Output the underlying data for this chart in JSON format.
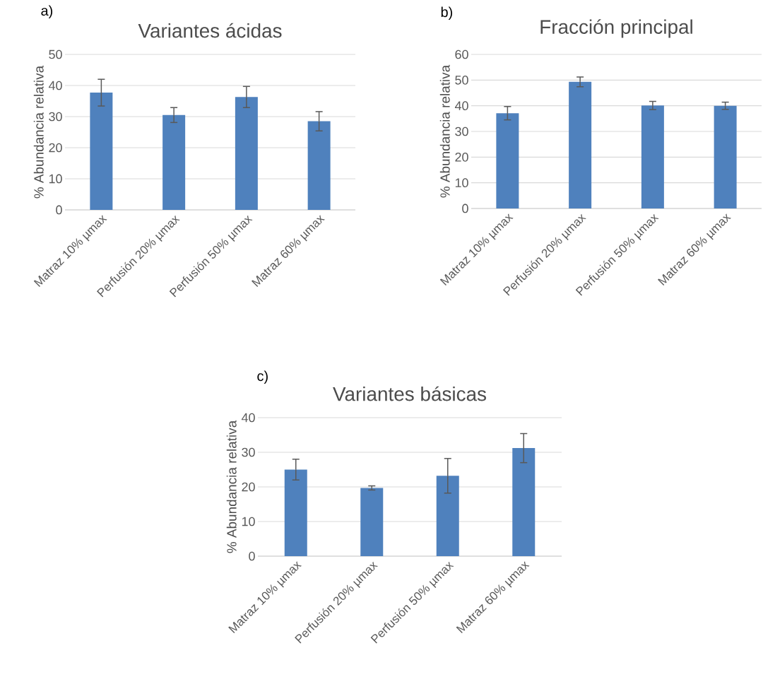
{
  "chart_data": [
    {
      "type": "bar",
      "title": "Variantes ácidas",
      "ylabel": "% Abundancia relativa",
      "annotations": [
        "a)"
      ],
      "categories": [
        "Matraz 10% µmax",
        "Perfusión 20% µmax",
        "Perfusión 50% µmax",
        "Matraz 60% µmax"
      ],
      "values": [
        37.7,
        30.5,
        36.3,
        28.5
      ],
      "errors": [
        4.3,
        2.4,
        3.4,
        3.1
      ],
      "color": "#4f81bd",
      "ylim": [
        0,
        50
      ],
      "yticks": [
        0,
        10,
        20,
        30,
        40,
        50
      ],
      "grid": "y"
    },
    {
      "type": "bar",
      "title": "Fracción principal",
      "ylabel": "% Abundancia relativa",
      "annotations": [
        "b)"
      ],
      "categories": [
        "Matraz 10% µmax",
        "Perfusión 20% µmax",
        "Perfusión 50% µmax",
        "Matraz 60% µmax"
      ],
      "values": [
        37.1,
        49.3,
        40.1,
        40.0
      ],
      "errors": [
        2.6,
        1.9,
        1.6,
        1.4
      ],
      "color": "#4f81bd",
      "ylim": [
        0,
        60
      ],
      "yticks": [
        0,
        10,
        20,
        30,
        40,
        50,
        60
      ],
      "grid": "y"
    },
    {
      "type": "bar",
      "title": "Variantes básicas",
      "ylabel": "% Abundancia relativa",
      "annotations": [
        "c)"
      ],
      "categories": [
        "Matraz 10% µmax",
        "Perfusión 20% µmax",
        "Perfusión 50% µmax",
        "Matraz 60% µmax"
      ],
      "values": [
        25.0,
        19.7,
        23.2,
        31.2
      ],
      "errors": [
        3.0,
        0.6,
        5.0,
        4.2
      ],
      "color": "#4f81bd",
      "ylim": [
        0,
        40
      ],
      "yticks": [
        0,
        10,
        20,
        30,
        40
      ],
      "grid": "y"
    }
  ]
}
